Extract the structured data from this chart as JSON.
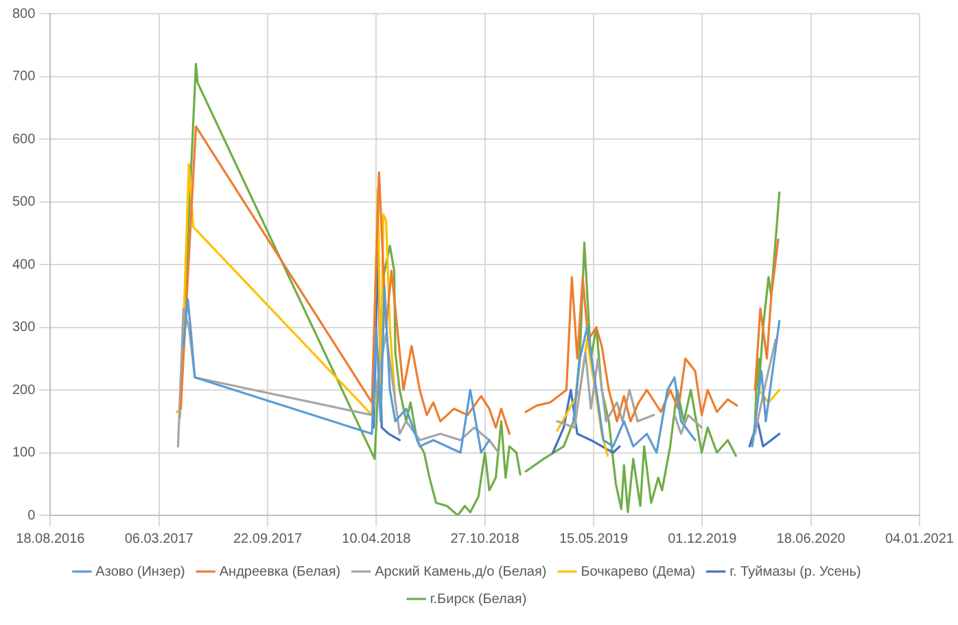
{
  "chart_data": {
    "type": "line",
    "xlim": [
      "2016-08-18",
      "2021-01-04"
    ],
    "xticks": [
      {
        "value": "2016-08-18",
        "label": "18.08.2016"
      },
      {
        "value": "2017-03-06",
        "label": "06.03.2017"
      },
      {
        "value": "2017-09-22",
        "label": "22.09.2017"
      },
      {
        "value": "2018-04-10",
        "label": "10.04.2018"
      },
      {
        "value": "2018-10-27",
        "label": "27.10.2018"
      },
      {
        "value": "2019-05-15",
        "label": "15.05.2019"
      },
      {
        "value": "2019-12-01",
        "label": "01.12.2019"
      },
      {
        "value": "2020-06-18",
        "label": "18.06.2020"
      },
      {
        "value": "2021-01-04",
        "label": "04.01.2021"
      }
    ],
    "ylim": [
      0,
      800
    ],
    "yticks": [
      0,
      100,
      200,
      300,
      400,
      500,
      600,
      700,
      800
    ],
    "grid": true,
    "legend": "bottom",
    "marker": "none",
    "line_style": "solid",
    "series": [
      {
        "name": "Азово (Инзер)",
        "color": "#5b9bd5",
        "x": [
          "2017-04-20",
          "2017-04-28",
          "2017-05-03",
          "2017-05-11",
          "2018-04-02",
          "2018-04-10",
          "2018-04-18",
          "2018-04-25",
          "2018-05-05",
          "2018-05-15",
          "2018-06-04",
          "2018-06-29",
          "2018-07-24",
          "2018-09-12",
          "2018-09-30",
          "2018-10-20",
          "2018-11-04",
          "2019-01-30",
          "2019-04-08",
          "2019-04-20",
          "2019-05-03",
          "2019-05-20",
          "2019-06-02",
          "2019-06-20",
          "2019-07-10",
          "2019-07-27",
          "2019-08-21",
          "2019-09-08",
          "2019-09-28",
          "2019-10-11",
          "2019-10-23",
          "2019-11-18",
          "2020-02-08",
          "2020-03-02",
          "2020-03-19",
          "2020-03-27",
          "2020-04-21"
        ],
        "values": [
          270,
          345,
          300,
          220,
          130,
          300,
          150,
          365,
          200,
          150,
          170,
          110,
          120,
          100,
          200,
          100,
          120,
          null,
          150,
          250,
          300,
          200,
          120,
          110,
          150,
          110,
          130,
          100,
          200,
          220,
          150,
          120,
          null,
          110,
          230,
          150,
          310
        ]
      },
      {
        "name": "Андреевка (Белая)",
        "color": "#ed7d31",
        "x": [
          "2017-04-15",
          "2017-05-13",
          "2018-04-02",
          "2018-04-15",
          "2018-04-28",
          "2018-05-08",
          "2018-05-15",
          "2018-05-23",
          "2018-05-30",
          "2018-06-14",
          "2018-06-29",
          "2018-07-12",
          "2018-07-24",
          "2018-08-06",
          "2018-08-31",
          "2018-09-25",
          "2018-10-20",
          "2018-11-04",
          "2018-11-16",
          "2018-11-26",
          "2018-12-11",
          "2018-12-31",
          "2019-01-10",
          "2019-01-30",
          "2019-02-24",
          "2019-03-26",
          "2019-04-05",
          "2019-04-15",
          "2019-04-25",
          "2019-05-05",
          "2019-05-20",
          "2019-05-30",
          "2019-06-12",
          "2019-06-27",
          "2019-07-10",
          "2019-07-22",
          "2019-08-06",
          "2019-08-21",
          "2019-09-16",
          "2019-10-03",
          "2019-10-18",
          "2019-10-31",
          "2019-11-18",
          "2019-11-30",
          "2019-12-11",
          "2019-12-28",
          "2020-01-17",
          "2020-02-03",
          "2020-02-20",
          "2020-03-07",
          "2020-03-17",
          "2020-03-29",
          "2020-04-06",
          "2020-04-19"
        ],
        "values": [
          170,
          620,
          180,
          547,
          300,
          390,
          330,
          260,
          200,
          270,
          200,
          160,
          180,
          150,
          170,
          160,
          190,
          170,
          140,
          170,
          130,
          null,
          165,
          175,
          180,
          200,
          380,
          250,
          380,
          280,
          300,
          270,
          200,
          150,
          190,
          150,
          180,
          200,
          165,
          200,
          170,
          250,
          230,
          160,
          200,
          165,
          185,
          175,
          null,
          200,
          330,
          250,
          350,
          440
        ]
      },
      {
        "name": "Арский Камень,д/о (Белая)",
        "color": "#a5a5a5",
        "x": [
          "2017-04-10",
          "2017-04-20",
          "2017-04-30",
          "2017-05-11",
          "2018-04-02",
          "2018-04-28",
          "2018-05-23",
          "2018-06-04",
          "2018-06-29",
          "2018-08-06",
          "2018-09-12",
          "2018-10-07",
          "2018-11-04",
          "2018-11-21",
          "2019-01-10",
          "2019-03-09",
          "2019-04-10",
          "2019-04-30",
          "2019-05-10",
          "2019-05-23",
          "2019-06-07",
          "2019-06-27",
          "2019-07-07",
          "2019-07-20",
          "2019-08-04",
          "2019-09-03",
          "2019-09-20",
          "2019-10-11",
          "2019-10-23",
          "2019-11-05",
          "2019-11-30",
          "2020-02-08",
          "2020-03-07",
          "2020-03-24",
          "2020-04-14"
        ],
        "values": [
          110,
          330,
          300,
          220,
          160,
          290,
          130,
          150,
          120,
          130,
          120,
          140,
          120,
          100,
          null,
          150,
          140,
          260,
          170,
          250,
          150,
          180,
          150,
          200,
          150,
          160,
          null,
          160,
          130,
          160,
          140,
          null,
          130,
          200,
          280
        ]
      },
      {
        "name": "Бочкарево (Дема)",
        "color": "#ffc000",
        "x": [
          "2017-04-08",
          "2017-04-15",
          "2017-04-30",
          "2017-05-08",
          "2018-04-02",
          "2018-04-13",
          "2018-04-18",
          "2018-04-23",
          "2018-04-28",
          "2018-05-05",
          "2018-05-15",
          "2018-10-27",
          "2019-03-09",
          "2019-04-20",
          "2019-05-03",
          "2019-05-18",
          "2019-05-30",
          "2019-06-10",
          "2019-12-11",
          "2020-03-04",
          "2020-03-14",
          "2020-04-01",
          "2020-04-21"
        ],
        "values": [
          165,
          168,
          560,
          460,
          160,
          520,
          200,
          480,
          470,
          300,
          180,
          null,
          135,
          200,
          280,
          200,
          130,
          95,
          null,
          120,
          200,
          180,
          200
        ]
      },
      {
        "name": "г. Туймазы (р. Усень)",
        "color": "#4472c4",
        "x": [
          "2018-04-05",
          "2018-04-13",
          "2018-04-20",
          "2018-05-03",
          "2018-05-23",
          "2018-11-04",
          "2019-03-01",
          "2019-03-21",
          "2019-04-03",
          "2019-04-15",
          "2019-05-10",
          "2019-06-20",
          "2019-07-02",
          "2019-12-11",
          "2020-02-26",
          "2020-03-12",
          "2020-03-22",
          "2020-04-06",
          "2020-04-21"
        ],
        "values": [
          140,
          420,
          140,
          130,
          120,
          null,
          100,
          140,
          200,
          130,
          120,
          100,
          110,
          null,
          110,
          150,
          110,
          120,
          130
        ]
      },
      {
        "name": "г.Бирск (Белая)",
        "color": "#70ad47",
        "x": [
          "2017-04-13",
          "2017-05-13",
          "2017-05-16",
          "2018-04-07",
          "2018-04-23",
          "2018-05-05",
          "2018-05-13",
          "2018-05-15",
          "2018-05-23",
          "2018-06-04",
          "2018-06-12",
          "2018-06-24",
          "2018-07-07",
          "2018-07-17",
          "2018-07-29",
          "2018-08-18",
          "2018-09-07",
          "2018-09-20",
          "2018-09-30",
          "2018-10-15",
          "2018-10-27",
          "2018-11-04",
          "2018-11-16",
          "2018-11-26",
          "2018-12-04",
          "2018-12-11",
          "2018-12-24",
          "2018-12-31",
          "2019-01-05",
          "2019-01-10",
          "2019-02-12",
          "2019-03-21",
          "2019-04-08",
          "2019-04-20",
          "2019-04-28",
          "2019-05-10",
          "2019-05-20",
          "2019-05-30",
          "2019-06-12",
          "2019-06-25",
          "2019-07-05",
          "2019-07-10",
          "2019-07-17",
          "2019-07-27",
          "2019-08-09",
          "2019-08-16",
          "2019-08-29",
          "2019-09-11",
          "2019-09-18",
          "2019-10-03",
          "2019-10-16",
          "2019-10-28",
          "2019-11-10",
          "2019-11-30",
          "2019-12-11",
          "2019-12-28",
          "2020-01-17",
          "2020-02-01",
          "2020-02-20",
          "2020-03-07",
          "2020-03-12",
          "2020-03-14",
          "2020-03-22",
          "2020-04-01",
          "2020-04-06",
          "2020-04-21"
        ],
        "values": [
          155,
          720,
          690,
          90,
          380,
          430,
          390,
          260,
          200,
          150,
          180,
          120,
          100,
          60,
          20,
          15,
          0,
          15,
          5,
          30,
          100,
          40,
          60,
          150,
          60,
          110,
          100,
          65,
          null,
          70,
          90,
          110,
          150,
          260,
          435,
          250,
          300,
          200,
          150,
          50,
          10,
          80,
          5,
          90,
          15,
          110,
          20,
          60,
          40,
          110,
          200,
          150,
          200,
          100,
          140,
          100,
          120,
          95,
          null,
          150,
          250,
          200,
          300,
          380,
          350,
          515
        ]
      }
    ]
  }
}
